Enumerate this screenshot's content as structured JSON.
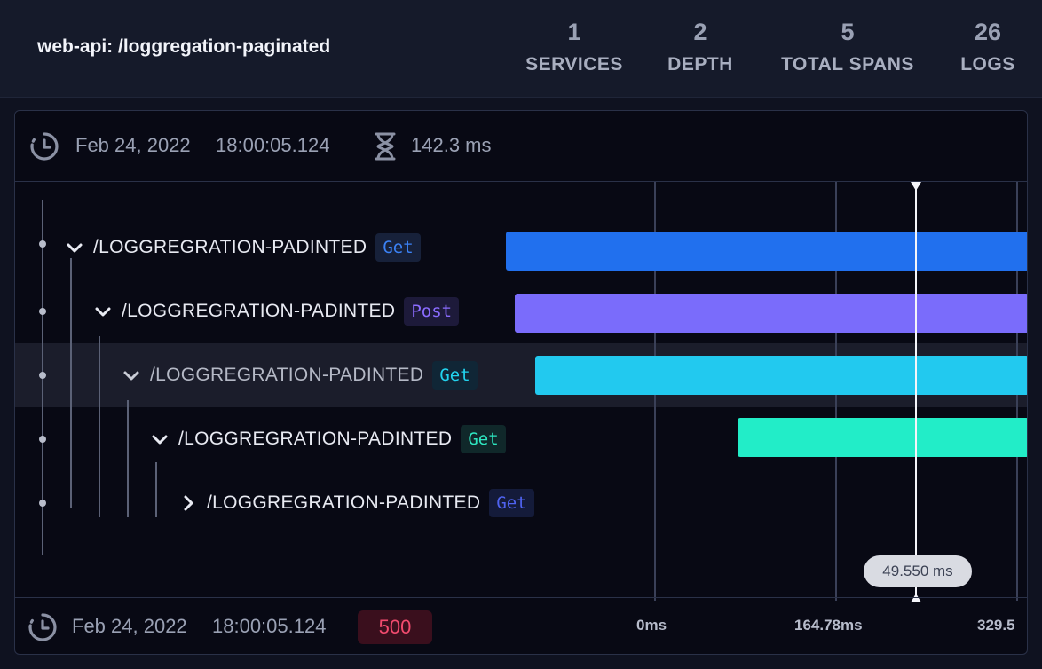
{
  "header": {
    "title": "web-api: /loggregation-paginated",
    "stats": [
      {
        "value": "1",
        "label": "SERVICES"
      },
      {
        "value": "2",
        "label": "DEPTH"
      },
      {
        "value": "5",
        "label": "TOTAL SPANS"
      },
      {
        "value": "26",
        "label": "LOGS"
      }
    ]
  },
  "panel": {
    "start_date": "Feb 24, 2022",
    "start_time": "18:00:05.124",
    "duration": "142.3 ms",
    "icons": {
      "clock": "clock-icon",
      "duration": "hourglass-icon"
    }
  },
  "spans": [
    {
      "name": "/LOGGREGRATION-PADINTED",
      "method": "Get",
      "expanded": true,
      "method_color": "#3b82f6",
      "method_bg": "#17213a",
      "bar_color": "#2170ee",
      "bar_start_ms": 0,
      "bar_end_ms": 142.3
    },
    {
      "name": "/LOGGREGRATION-PADINTED",
      "method": "Post",
      "expanded": true,
      "method_color": "#8b6cff",
      "method_bg": "#1d1a3a",
      "bar_color": "#7a6cfb",
      "bar_start_ms": 2.5,
      "bar_end_ms": 142.3
    },
    {
      "name": "/LOGGREGRATION-PADINTED",
      "method": "Get",
      "expanded": true,
      "method_color": "#22d3ee",
      "method_bg": "#102636",
      "bar_color": "#22c9ef",
      "bar_start_ms": 8,
      "bar_end_ms": 142.3
    },
    {
      "name": "/LOGGREGRATION-PADINTED",
      "method": "Get",
      "expanded": true,
      "method_color": "#2ee6c0",
      "method_bg": "#10282a",
      "bar_color": "#22edc8",
      "bar_start_ms": 63,
      "bar_end_ms": 142.3
    },
    {
      "name": "/LOGGREGRATION-PADINTED",
      "method": "Get",
      "expanded": false,
      "method_color": "#4f63f0",
      "method_bg": "#141b3a"
    }
  ],
  "timeline": {
    "cursor_label": "49.550 ms",
    "ticks": [
      "0ms",
      "164.78ms",
      "329.5"
    ]
  },
  "footer": {
    "date": "Feb 24, 2022",
    "time": "18:00:05.124",
    "status": "500"
  }
}
